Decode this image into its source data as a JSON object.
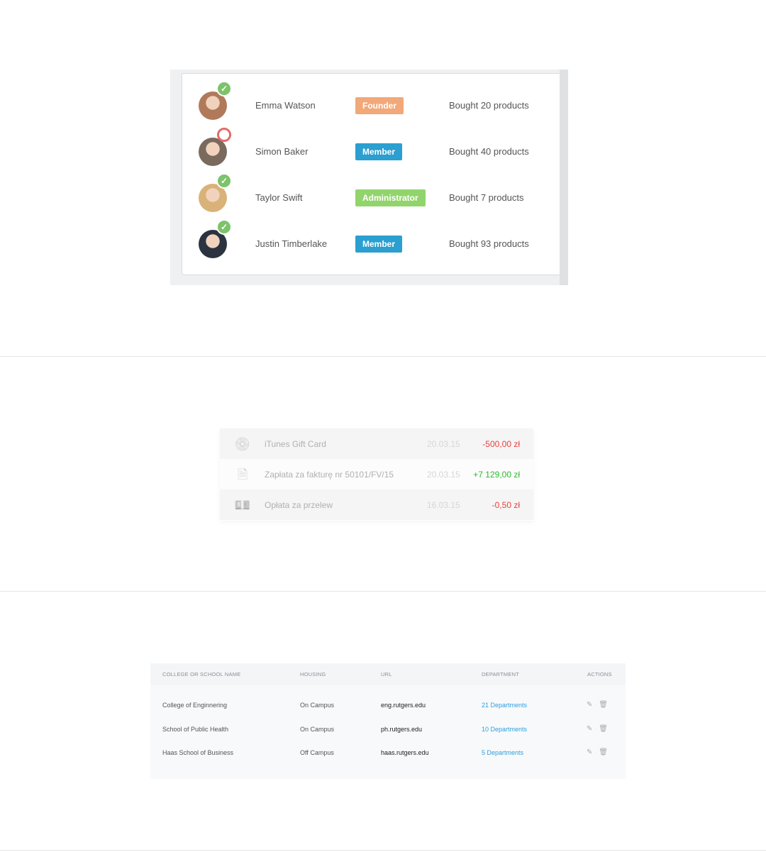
{
  "users": [
    {
      "name": "Emma Watson",
      "role": "Founder",
      "role_color": "#f2a879",
      "status": "online",
      "bought": "Bought 20 products",
      "avatar_color": "#b07a5a"
    },
    {
      "name": "Simon Baker",
      "role": "Member",
      "role_color": "#2a9fd0",
      "status": "offline",
      "bought": "Bought 40 products",
      "avatar_color": "#7a6a5e"
    },
    {
      "name": "Taylor Swift",
      "role": "Administrator",
      "role_color": "#92d46c",
      "status": "online",
      "bought": "Bought 7 products",
      "avatar_color": "#d9b27a"
    },
    {
      "name": "Justin Timberlake",
      "role": "Member",
      "role_color": "#2a9fd0",
      "status": "online",
      "bought": "Bought 93 products",
      "avatar_color": "#2b3340"
    }
  ],
  "transactions": [
    {
      "icon": "music-disc-icon",
      "glyph": "💿",
      "description": "iTunes Gift Card",
      "date": "20.03.15",
      "amount": "-500,00 zł",
      "amount_color": "#e8403f"
    },
    {
      "icon": "document-icon",
      "glyph": "🗎",
      "description": "Zapłata za fakturę nr 50101/FV/15",
      "date": "20.03.15",
      "amount": "+7 129,00 zł",
      "amount_color": "#2fb82f"
    },
    {
      "icon": "money-icon",
      "glyph": "💵",
      "description": "Opłata za przelew",
      "date": "16.03.15",
      "amount": "-0,50 zł",
      "amount_color": "#e8403f"
    }
  ],
  "schools": {
    "headers": [
      "COLLEGE OR SCHOOL NAME",
      "HOUSING",
      "URL",
      "DEPARTMENT",
      "ACTIONS"
    ],
    "rows": [
      {
        "name": "College of Enginnering",
        "housing": "On Campus",
        "url": "eng.rutgers.edu",
        "department": "21 Departments"
      },
      {
        "name": "School of Public Health",
        "housing": "On Campus",
        "url": "ph.rutgers.edu",
        "department": "10 Departments"
      },
      {
        "name": "Haas School of Business",
        "housing": "Off Campus",
        "url": "haas.rutgers.edu",
        "department": "5 Departments"
      }
    ]
  }
}
